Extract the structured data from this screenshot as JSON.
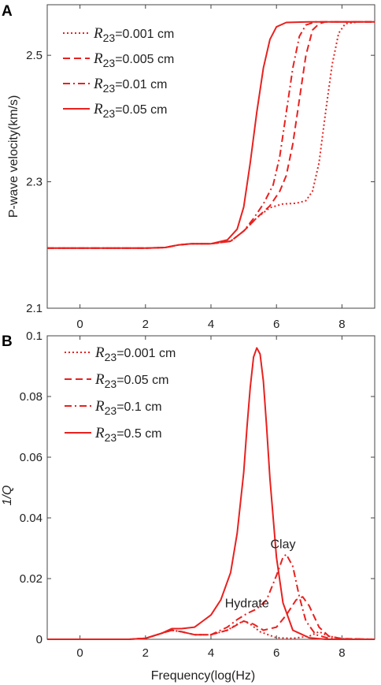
{
  "chart_data": [
    {
      "panel": "A",
      "type": "line",
      "title": "",
      "xlabel": "",
      "ylabel": "P-wave velocity(km/s)",
      "xlim": [
        -1,
        9
      ],
      "ylim": [
        2.1,
        2.58
      ],
      "xticks": [
        "0",
        "2",
        "4",
        "6",
        "8"
      ],
      "xtick_values": [
        0,
        2,
        4,
        6,
        8
      ],
      "yticks": [
        "2.1",
        "2.3",
        "2.5"
      ],
      "ytick_values": [
        2.1,
        2.3,
        2.5
      ],
      "grid": false,
      "legend_position": "top-left",
      "color": "#e8211f",
      "series": [
        {
          "name": "R23=0.001 cm",
          "label_main": "R",
          "label_sub": "23",
          "label_rest": "=0.001 cm",
          "dash": "dotted",
          "x": [
            -1,
            2,
            2.6,
            3,
            3.4,
            4,
            4.6,
            5,
            5.4,
            5.8,
            6.2,
            6.6,
            6.9,
            7.1,
            7.3,
            7.5,
            7.7,
            7.9,
            8.1,
            8.5,
            9
          ],
          "y": [
            2.195,
            2.195,
            2.196,
            2.2,
            2.202,
            2.202,
            2.206,
            2.222,
            2.243,
            2.259,
            2.265,
            2.266,
            2.27,
            2.285,
            2.33,
            2.41,
            2.485,
            2.535,
            2.55,
            2.553,
            2.553
          ]
        },
        {
          "name": "R23=0.005 cm",
          "label_main": "R",
          "label_sub": "23",
          "label_rest": "=0.005 cm",
          "dash": "dashed",
          "x": [
            -1,
            2,
            2.6,
            3,
            3.4,
            4,
            4.6,
            5,
            5.4,
            5.8,
            6.1,
            6.3,
            6.5,
            6.7,
            6.9,
            7.1,
            7.3,
            7.5,
            8,
            9
          ],
          "y": [
            2.195,
            2.195,
            2.196,
            2.2,
            2.202,
            2.202,
            2.206,
            2.222,
            2.243,
            2.262,
            2.285,
            2.31,
            2.36,
            2.43,
            2.5,
            2.54,
            2.55,
            2.553,
            2.553,
            2.553
          ]
        },
        {
          "name": "R23=0.01 cm",
          "label_main": "R",
          "label_sub": "23",
          "label_rest": "=0.01 cm",
          "dash": "dashdot",
          "x": [
            -1,
            2,
            2.6,
            3,
            3.4,
            4,
            4.6,
            5,
            5.3,
            5.6,
            5.9,
            6.1,
            6.3,
            6.5,
            6.7,
            6.9,
            7.2,
            8,
            9
          ],
          "y": [
            2.195,
            2.195,
            2.196,
            2.2,
            2.202,
            2.202,
            2.206,
            2.222,
            2.242,
            2.265,
            2.295,
            2.34,
            2.41,
            2.48,
            2.53,
            2.548,
            2.553,
            2.553,
            2.553
          ]
        },
        {
          "name": "R23=0.05 cm",
          "label_main": "R",
          "label_sub": "23",
          "label_rest": "=0.05 cm",
          "dash": "solid",
          "x": [
            -1,
            2,
            2.6,
            3,
            3.4,
            4,
            4.5,
            4.8,
            5,
            5.2,
            5.4,
            5.6,
            5.8,
            6,
            6.3,
            7,
            9
          ],
          "y": [
            2.195,
            2.195,
            2.196,
            2.2,
            2.202,
            2.202,
            2.208,
            2.225,
            2.26,
            2.33,
            2.41,
            2.48,
            2.525,
            2.545,
            2.552,
            2.553,
            2.553
          ]
        }
      ]
    },
    {
      "panel": "B",
      "type": "line",
      "title": "",
      "xlabel": "Frequency(log(Hz)",
      "ylabel": "1/Q",
      "xlim": [
        -1,
        9
      ],
      "ylim": [
        0,
        0.1
      ],
      "xticks": [
        "0",
        "2",
        "4",
        "6",
        "8"
      ],
      "xtick_values": [
        0,
        2,
        4,
        6,
        8
      ],
      "yticks": [
        "0",
        "0.02",
        "0.04",
        "0.06",
        "0.08",
        "0.1"
      ],
      "ytick_values": [
        0,
        0.02,
        0.04,
        0.06,
        0.08,
        0.1
      ],
      "grid": false,
      "legend_position": "top-left",
      "color": "#e8211f",
      "annotations": [
        {
          "text": "Clay",
          "x": 6.2,
          "y": 0.029
        },
        {
          "text": "Hydrate",
          "x": 5.1,
          "y": 0.0095
        }
      ],
      "series": [
        {
          "name": "R23=0.001 cm",
          "label_main": "R",
          "label_sub": "23",
          "label_rest": "=0.001 cm",
          "dash": "dotted",
          "x": [
            -1,
            1.5,
            2,
            2.5,
            2.8,
            3.1,
            3.5,
            4,
            4.5,
            4.8,
            5,
            5.2,
            5.5,
            6,
            6.5,
            7,
            7.3,
            7.6,
            8,
            9
          ],
          "y": [
            0,
            0,
            0.0003,
            0.002,
            0.003,
            0.0025,
            0.0015,
            0.0015,
            0.003,
            0.005,
            0.006,
            0.005,
            0.0025,
            0.0005,
            0.0003,
            0.001,
            0.0025,
            0.001,
            0.0002,
            0
          ]
        },
        {
          "name": "R23=0.05 cm",
          "label_main": "R",
          "label_sub": "23",
          "label_rest": "=0.05 cm",
          "dash": "dashed",
          "x": [
            -1,
            1.5,
            2,
            2.5,
            2.8,
            3.1,
            3.5,
            4,
            4.5,
            5,
            5.3,
            5.6,
            6,
            6.3,
            6.6,
            6.8,
            7,
            7.3,
            7.6,
            8,
            9
          ],
          "y": [
            0,
            0,
            0.0003,
            0.002,
            0.003,
            0.0025,
            0.0015,
            0.0015,
            0.003,
            0.006,
            0.005,
            0.003,
            0.004,
            0.008,
            0.013,
            0.014,
            0.011,
            0.004,
            0.001,
            0.0002,
            0
          ]
        },
        {
          "name": "R23=0.1 cm",
          "label_main": "R",
          "label_sub": "23",
          "label_rest": "=0.1 cm",
          "dash": "dashdot",
          "x": [
            -1,
            1.5,
            2,
            2.5,
            2.8,
            3.1,
            3.5,
            4,
            4.5,
            4.8,
            5.1,
            5.4,
            5.7,
            6,
            6.2,
            6.3,
            6.5,
            6.7,
            6.9,
            7.2,
            7.6,
            8,
            9
          ],
          "y": [
            0,
            0,
            0.0003,
            0.002,
            0.003,
            0.0025,
            0.0015,
            0.0015,
            0.004,
            0.0065,
            0.0085,
            0.01,
            0.013,
            0.021,
            0.027,
            0.028,
            0.024,
            0.014,
            0.006,
            0.0015,
            0.0003,
            0,
            0
          ]
        },
        {
          "name": "R23=0.5 cm",
          "label_main": "R",
          "label_sub": "23",
          "label_rest": "=0.5 cm",
          "dash": "solid",
          "x": [
            -1,
            1.5,
            2,
            2.5,
            2.8,
            3.1,
            3.5,
            4,
            4.3,
            4.6,
            4.8,
            5,
            5.1,
            5.2,
            5.3,
            5.4,
            5.5,
            5.6,
            5.7,
            5.8,
            6,
            6.2,
            6.5,
            7,
            7.5,
            9
          ],
          "y": [
            0,
            0,
            0.0003,
            0.002,
            0.0035,
            0.0035,
            0.004,
            0.008,
            0.013,
            0.022,
            0.035,
            0.055,
            0.07,
            0.083,
            0.093,
            0.096,
            0.094,
            0.085,
            0.07,
            0.053,
            0.027,
            0.012,
            0.003,
            0.0005,
            0,
            0
          ]
        }
      ]
    }
  ]
}
